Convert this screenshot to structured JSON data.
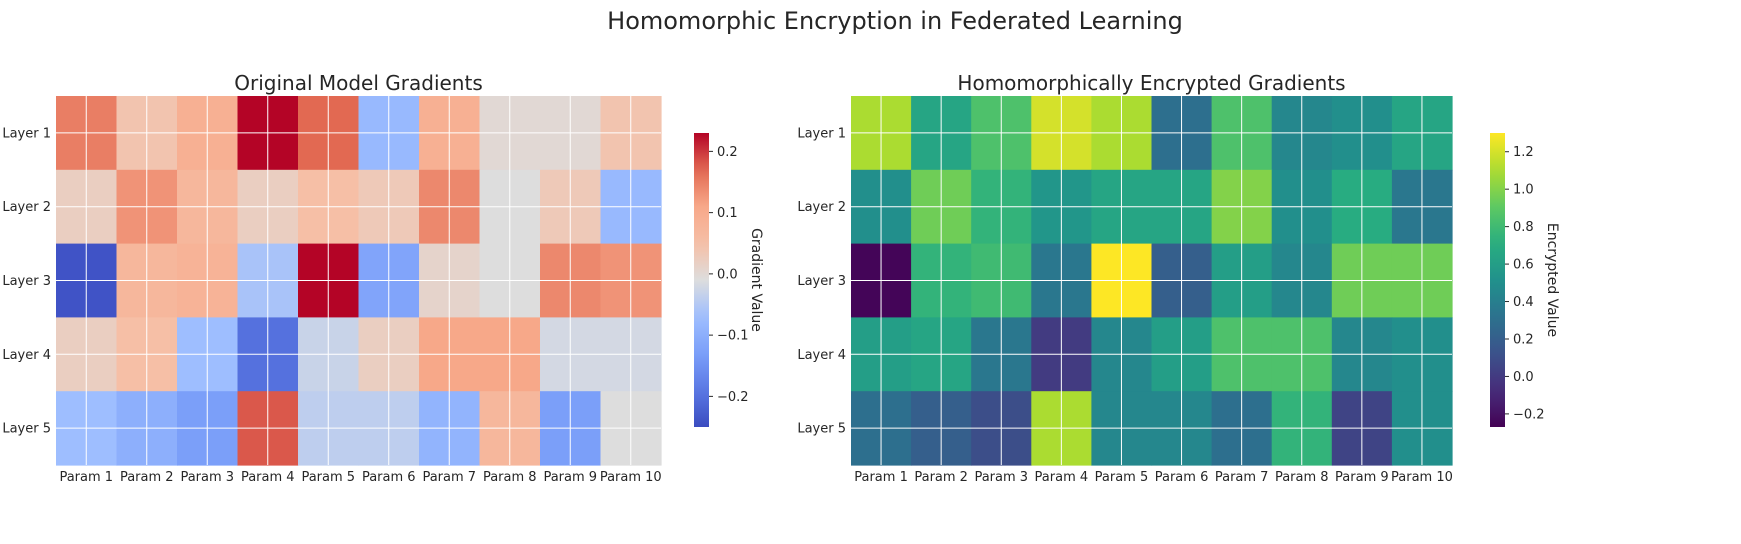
{
  "figure": {
    "title": "Homomorphic Encryption in Federated Learning"
  },
  "chart_data": [
    {
      "type": "heatmap",
      "title": "Original Model Gradients",
      "colormap": "coolwarm",
      "rows": [
        "Layer 1",
        "Layer 2",
        "Layer 3",
        "Layer 4",
        "Layer 5"
      ],
      "columns": [
        "Param 1",
        "Param 2",
        "Param 3",
        "Param 4",
        "Param 5",
        "Param 6",
        "Param 7",
        "Param 8",
        "Param 9",
        "Param 10"
      ],
      "values": [
        [
          0.15,
          0.04,
          0.09,
          0.23,
          0.17,
          -0.08,
          0.09,
          0.0,
          0.0,
          0.04
        ],
        [
          0.02,
          0.13,
          0.07,
          0.02,
          0.05,
          0.03,
          0.14,
          -0.01,
          0.03,
          -0.08
        ],
        [
          -0.24,
          0.07,
          0.08,
          -0.06,
          0.23,
          -0.12,
          0.01,
          -0.01,
          0.14,
          0.13
        ],
        [
          0.02,
          0.05,
          -0.07,
          -0.2,
          -0.03,
          0.02,
          0.11,
          0.11,
          -0.02,
          -0.02
        ],
        [
          -0.07,
          -0.1,
          -0.13,
          0.18,
          -0.04,
          -0.04,
          -0.09,
          0.07,
          -0.13,
          -0.01
        ]
      ],
      "colorbar": {
        "label": "Gradient Value",
        "range": [
          -0.25,
          0.23
        ],
        "ticks": [
          -0.2,
          -0.1,
          0.0,
          0.1,
          0.2
        ],
        "tick_labels": [
          "−0.2",
          "−0.1",
          "0.0",
          "0.1",
          "0.2"
        ]
      },
      "grid": true
    },
    {
      "type": "heatmap",
      "title": "Homomorphically Encrypted Gradients",
      "colormap": "viridis",
      "rows": [
        "Layer 1",
        "Layer 2",
        "Layer 3",
        "Layer 4",
        "Layer 5"
      ],
      "columns": [
        "Param 1",
        "Param 2",
        "Param 3",
        "Param 4",
        "Param 5",
        "Param 6",
        "Param 7",
        "Param 8",
        "Param 9",
        "Param 10"
      ],
      "values": [
        [
          1.1,
          0.65,
          0.85,
          1.2,
          1.1,
          0.3,
          0.85,
          0.45,
          0.5,
          0.65
        ],
        [
          0.5,
          0.95,
          0.75,
          0.55,
          0.65,
          0.65,
          1.0,
          0.5,
          0.7,
          0.35
        ],
        [
          -0.25,
          0.75,
          0.8,
          0.35,
          1.3,
          0.2,
          0.6,
          0.45,
          0.95,
          0.95
        ],
        [
          0.6,
          0.65,
          0.35,
          0.0,
          0.45,
          0.6,
          0.85,
          0.85,
          0.45,
          0.5
        ],
        [
          0.3,
          0.2,
          0.1,
          1.1,
          0.45,
          0.45,
          0.3,
          0.75,
          0.05,
          0.5
        ]
      ],
      "colorbar": {
        "label": "Encrypted Value",
        "range": [
          -0.27,
          1.3
        ],
        "ticks": [
          -0.2,
          0.0,
          0.2,
          0.4,
          0.6,
          0.8,
          1.0,
          1.2
        ],
        "tick_labels": [
          "−0.2",
          "0.0",
          "0.2",
          "0.4",
          "0.6",
          "0.8",
          "1.0",
          "1.2"
        ]
      },
      "grid": true
    }
  ]
}
